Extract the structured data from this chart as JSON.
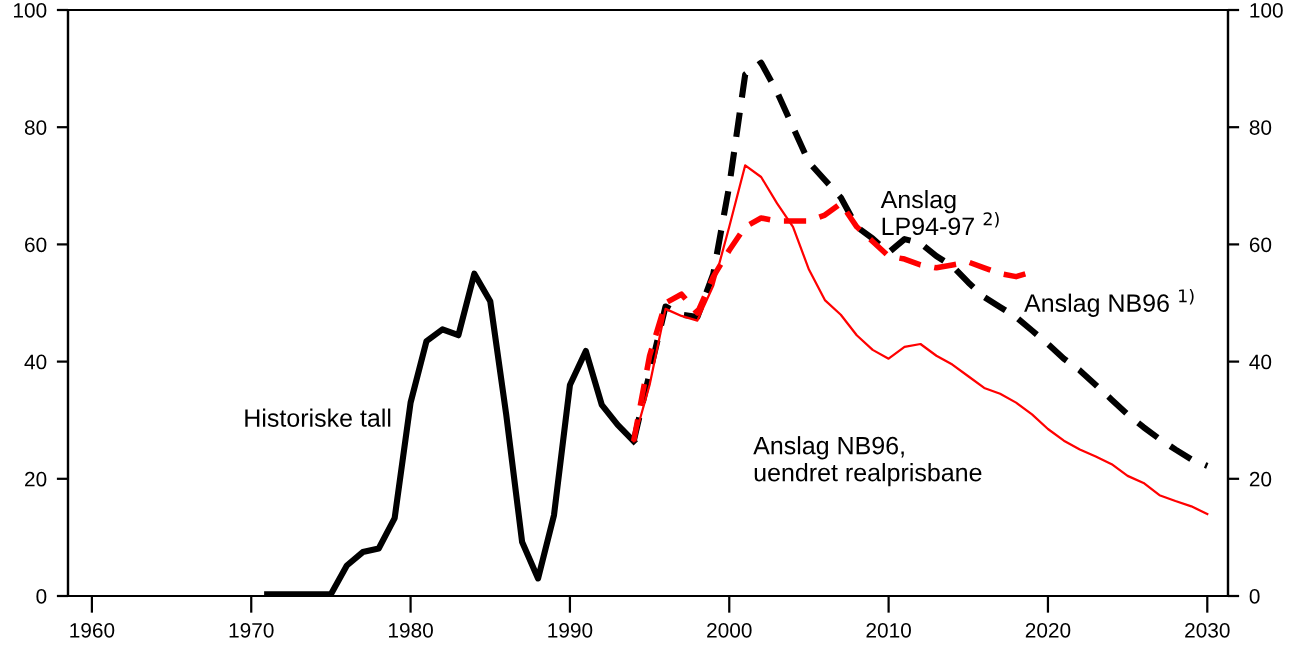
{
  "chart_data": {
    "type": "line",
    "xlim": [
      1958.5,
      2031.3
    ],
    "xticks": [
      1960,
      1970,
      1980,
      1990,
      2000,
      2010,
      2020,
      2030
    ],
    "ylim": [
      0,
      100
    ],
    "yticks": [
      0,
      20,
      40,
      60,
      80,
      100
    ],
    "y2lim": [
      0,
      100
    ],
    "y2ticks": [
      0,
      20,
      40,
      60,
      80,
      100
    ],
    "grid": false,
    "legend": false,
    "marker": "none",
    "series": [
      {
        "name": "Historiske tall",
        "color": "#000000",
        "line_style": "solid",
        "x": [
          1971,
          1972,
          1973,
          1974,
          1975,
          1976,
          1977,
          1978,
          1979,
          1980,
          1981,
          1982,
          1983,
          1984,
          1985,
          1986,
          1987,
          1988,
          1989,
          1990,
          1991,
          1992,
          1993,
          1994
        ],
        "values": [
          0.3,
          0.3,
          0.3,
          0.3,
          0.3,
          5.2,
          7.5,
          8.1,
          13.3,
          33,
          43.5,
          45.5,
          44.5,
          55,
          50.3,
          31,
          9.2,
          3,
          13.8,
          36,
          41.8,
          32.6,
          29.2,
          26.4
        ]
      },
      {
        "name": "Anslag NB96 $^{1)}$",
        "color": "#000000",
        "line_style": "dashed",
        "x": [
          1994,
          1995,
          1996,
          1997,
          1998,
          1999,
          2000,
          2001,
          2002,
          2003,
          2004,
          2005,
          2006,
          2007,
          2008,
          2009,
          2010,
          2011,
          2012,
          2013,
          2014,
          2015,
          2016,
          2017,
          2018,
          2019,
          2020,
          2021,
          2022,
          2023,
          2024,
          2025,
          2026,
          2027,
          2028,
          2029,
          2030
        ],
        "values": [
          26.4,
          38,
          49.4,
          48,
          47.6,
          55,
          70,
          89,
          91,
          86,
          80,
          74,
          71,
          68,
          63,
          61,
          58.6,
          60.9,
          60.2,
          58,
          56.3,
          53.5,
          51,
          49.3,
          47.6,
          45.3,
          43,
          40.5,
          38.5,
          36,
          33.5,
          31,
          28.8,
          26.8,
          25,
          23.3,
          22.2
        ]
      },
      {
        "name": "Anslag\nLP94-97 $^{2)}$",
        "color": "#ff0000",
        "line_style": "dashed",
        "x": [
          1994,
          1995,
          1996,
          1997,
          1998,
          1999,
          2000,
          2001,
          2002,
          2003,
          2004,
          2005,
          2006,
          2007,
          2008,
          2009,
          2010,
          2011,
          2012,
          2013,
          2014,
          2015,
          2016,
          2017,
          2018,
          2019
        ],
        "values": [
          26.4,
          41,
          50,
          51.5,
          48.3,
          54.5,
          59,
          63,
          64.5,
          64,
          64,
          64,
          65,
          67,
          63,
          60.5,
          58,
          57.5,
          56.5,
          56,
          56.5,
          57,
          56,
          55,
          54.5,
          55.3
        ]
      },
      {
        "name": "Anslag NB96,\nuendret realprisbane",
        "color": "#ff0000",
        "line_style": "solid",
        "x": [
          1994,
          1995,
          1996,
          1997,
          1998,
          1999,
          2000,
          2001,
          2002,
          2003,
          2004,
          2005,
          2006,
          2007,
          2008,
          2009,
          2010,
          2011,
          2012,
          2013,
          2014,
          2015,
          2016,
          2017,
          2018,
          2019,
          2020,
          2021,
          2022,
          2023,
          2024,
          2025,
          2026,
          2027,
          2028,
          2029,
          2030
        ],
        "values": [
          26.4,
          36,
          49,
          47.8,
          47,
          53,
          63,
          73.5,
          71.5,
          67,
          63,
          55.7,
          50.5,
          48,
          44.5,
          42,
          40.5,
          42.5,
          43,
          41,
          39.5,
          37.5,
          35.5,
          34.5,
          33,
          31,
          28.5,
          26.5,
          25,
          23.8,
          22.5,
          20.5,
          19.3,
          17.2,
          16.2,
          15.3,
          14
        ]
      }
    ]
  }
}
